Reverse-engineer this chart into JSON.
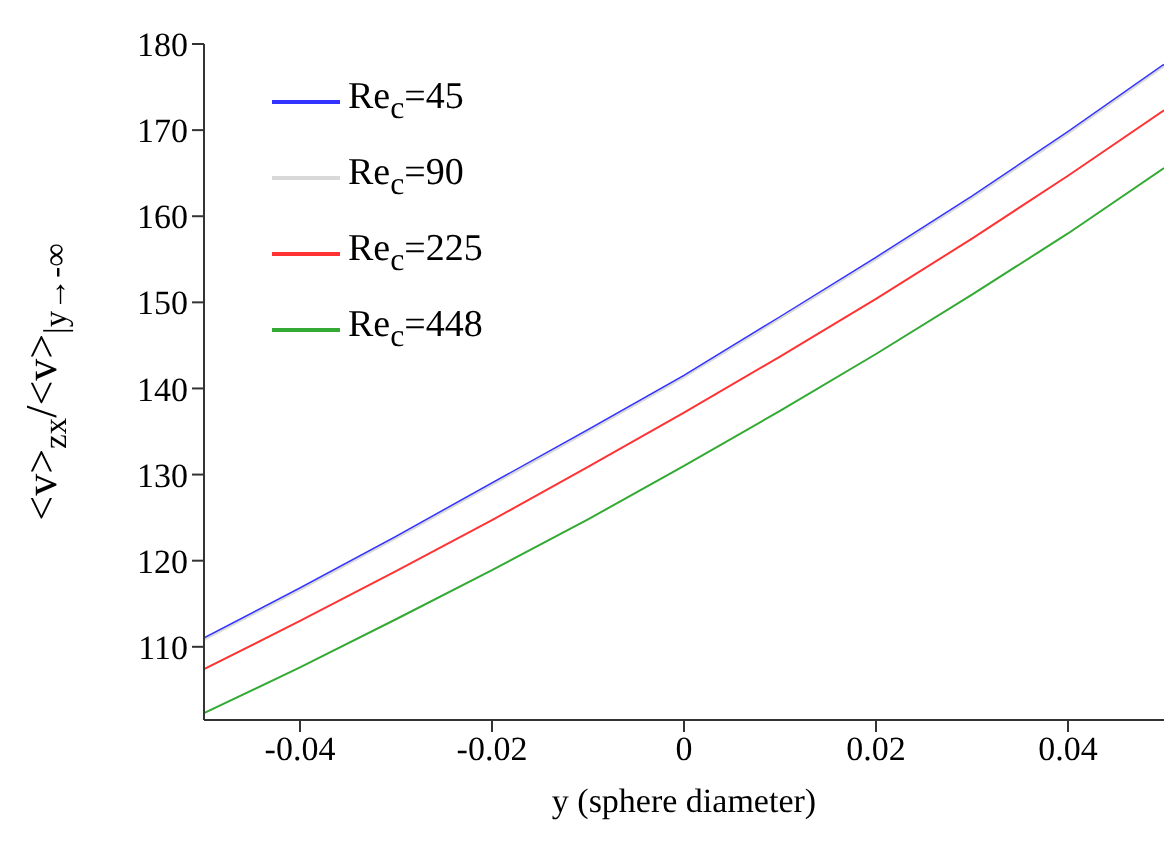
{
  "chart_data": {
    "type": "line",
    "xlabel": "y (sphere diameter)",
    "ylabel": "<v>$_{zx}$/<v>$_{|y→-∞}$",
    "x": [
      -0.05,
      -0.04,
      -0.03,
      -0.02,
      -0.01,
      0,
      0.01,
      0.02,
      0.03,
      0.04,
      0.05
    ],
    "series": [
      {
        "name": "Re$_{c}$=45",
        "color": "#3333ff",
        "values": [
          111,
          116.8,
          122.8,
          129,
          135.2,
          141.5,
          148.3,
          155.2,
          162.3,
          169.8,
          177.6
        ]
      },
      {
        "name": "Re$_{c}$=90",
        "color": "#d9d9d9",
        "values": [
          110.8,
          116.6,
          122.6,
          128.8,
          135,
          141.3,
          148.1,
          155,
          162.1,
          169.6,
          177.4
        ]
      },
      {
        "name": "Re$_{c}$=225",
        "color": "#ff3333",
        "values": [
          107.4,
          113,
          118.8,
          124.7,
          130.9,
          137.2,
          143.7,
          150.4,
          157.4,
          164.7,
          172.3
        ]
      },
      {
        "name": "Re$_{c}$=448",
        "color": "#33aa33",
        "values": [
          102.3,
          107.6,
          113.2,
          118.9,
          124.8,
          131,
          137.4,
          144,
          150.9,
          158,
          165.6
        ]
      }
    ],
    "xlim": [
      -0.05,
      0.05
    ],
    "xticks": [
      -0.04,
      -0.02,
      0,
      0.02,
      0.04
    ],
    "ylim": [
      101.5,
      180
    ],
    "yticks": [
      110,
      120,
      130,
      140,
      150,
      160,
      170,
      180
    ],
    "grid": false,
    "legend": "top left",
    "marker": "none",
    "line_style": "solid"
  }
}
